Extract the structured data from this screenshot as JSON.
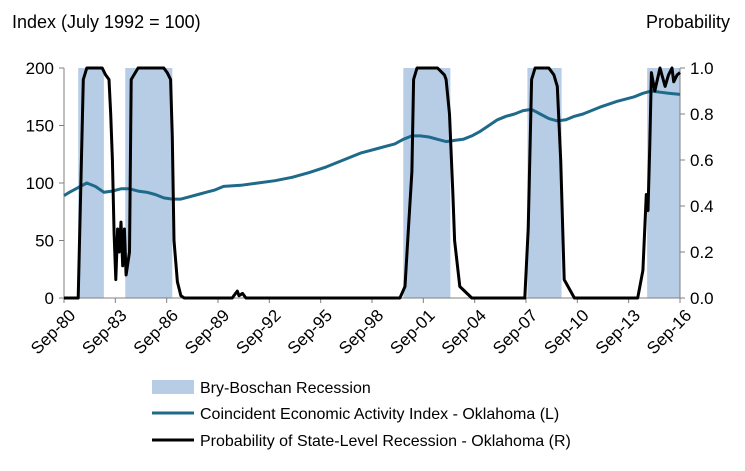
{
  "chart_data": {
    "type": "line",
    "left_axis_title": "Index (July 1992 = 100)",
    "right_axis_title": "Probability",
    "x_tick_labels": [
      "Sep-80",
      "Sep-83",
      "Sep-86",
      "Sep-89",
      "Sep-92",
      "Sep-95",
      "Sep-98",
      "Sep-01",
      "Sep-04",
      "Sep-07",
      "Sep-10",
      "Sep-13",
      "Sep-16"
    ],
    "x_range": [
      1980.67,
      2016.67
    ],
    "y_left": {
      "ticks": [
        "0",
        "50",
        "100",
        "150",
        "200"
      ],
      "range": [
        0,
        200
      ]
    },
    "y_right": {
      "ticks": [
        "0.0",
        "0.2",
        "0.4",
        "0.6",
        "0.8",
        "1.0"
      ],
      "range": [
        0,
        1
      ]
    },
    "recessions": [
      {
        "start": 1981.5,
        "end": 1983.0
      },
      {
        "start": 1984.25,
        "end": 1987.0
      },
      {
        "start": 2000.5,
        "end": 2003.25
      },
      {
        "start": 2007.75,
        "end": 2009.75
      },
      {
        "start": 2014.75,
        "end": 2016.67
      }
    ],
    "series": [
      {
        "name": "Bry-Boschan Recession",
        "kind": "band",
        "color": "#b7cde6"
      },
      {
        "name": "Coincident Economic Activity Index - Oklahoma (L)",
        "kind": "line",
        "axis": "left",
        "color": "#1f6a8a",
        "x": [
          1980.67,
          1981.0,
          1981.5,
          1982.0,
          1982.5,
          1983.0,
          1983.5,
          1984.0,
          1984.5,
          1985.0,
          1985.5,
          1986.0,
          1986.5,
          1987.0,
          1987.5,
          1988.0,
          1988.5,
          1989.0,
          1989.5,
          1990.0,
          1991.0,
          1992.0,
          1993.0,
          1994.0,
          1995.0,
          1996.0,
          1997.0,
          1998.0,
          1998.5,
          1999.0,
          2000.0,
          2000.5,
          2001.0,
          2001.5,
          2002.0,
          2002.5,
          2003.0,
          2003.5,
          2004.0,
          2004.5,
          2005.0,
          2005.5,
          2006.0,
          2006.5,
          2007.0,
          2007.5,
          2008.0,
          2008.5,
          2009.0,
          2009.5,
          2010.0,
          2010.5,
          2011.0,
          2012.0,
          2013.0,
          2014.0,
          2014.5,
          2015.0,
          2015.5,
          2016.0,
          2016.67
        ],
        "values": [
          89,
          92,
          96,
          100,
          97,
          92,
          93,
          95,
          95,
          93,
          92,
          90,
          87,
          86,
          86,
          88,
          90,
          92,
          94,
          97,
          98,
          100,
          102,
          105,
          109,
          114,
          120,
          126,
          128,
          130,
          134,
          138,
          141,
          141,
          140,
          138,
          136,
          137,
          138,
          141,
          145,
          150,
          155,
          158,
          160,
          163,
          164,
          160,
          156,
          154,
          155,
          158,
          160,
          166,
          171,
          175,
          178,
          180,
          179,
          178,
          177
        ]
      },
      {
        "name": "Probability of State-Level Recession - Oklahoma (R)",
        "kind": "line",
        "axis": "right",
        "color": "#000000",
        "x": [
          1980.67,
          1981.5,
          1981.8,
          1982.0,
          1982.5,
          1982.9,
          1983.1,
          1983.3,
          1983.4,
          1983.5,
          1983.6,
          1983.7,
          1983.8,
          1983.9,
          1984.0,
          1984.1,
          1984.2,
          1984.3,
          1984.5,
          1984.6,
          1985.0,
          1986.5,
          1986.7,
          1986.9,
          1987.0,
          1987.1,
          1987.3,
          1987.5,
          1987.7,
          1990.5,
          1990.7,
          1990.8,
          1990.9,
          1991.1,
          1991.3,
          2000.3,
          2000.6,
          2000.8,
          2001.0,
          2001.1,
          2001.3,
          2002.5,
          2002.9,
          2003.0,
          2003.2,
          2003.4,
          2003.5,
          2003.6,
          2003.8,
          2004.5,
          2007.6,
          2007.8,
          2008.0,
          2008.2,
          2009.0,
          2009.3,
          2009.5,
          2009.7,
          2009.9,
          2010.5,
          2014.2,
          2014.5,
          2014.7,
          2014.8,
          2014.9,
          2015.0,
          2015.2,
          2015.5,
          2015.8,
          2016.0,
          2016.2,
          2016.3,
          2016.5,
          2016.67
        ],
        "values": [
          0.0,
          0.0,
          0.95,
          1.0,
          1.0,
          1.0,
          0.97,
          0.95,
          0.8,
          0.6,
          0.28,
          0.08,
          0.3,
          0.2,
          0.33,
          0.14,
          0.3,
          0.1,
          0.2,
          0.95,
          1.0,
          1.0,
          0.98,
          0.95,
          0.7,
          0.25,
          0.07,
          0.01,
          0.0,
          0.0,
          0.02,
          0.03,
          0.01,
          0.02,
          0.0,
          0.0,
          0.05,
          0.3,
          0.55,
          0.95,
          1.0,
          1.0,
          0.97,
          0.95,
          0.8,
          0.45,
          0.25,
          0.18,
          0.05,
          0.0,
          0.0,
          0.3,
          0.95,
          1.0,
          1.0,
          0.97,
          0.92,
          0.6,
          0.08,
          0.0,
          0.0,
          0.12,
          0.45,
          0.38,
          0.65,
          0.98,
          0.9,
          1.0,
          0.92,
          0.97,
          1.0,
          0.94,
          0.97,
          0.98
        ]
      }
    ]
  }
}
